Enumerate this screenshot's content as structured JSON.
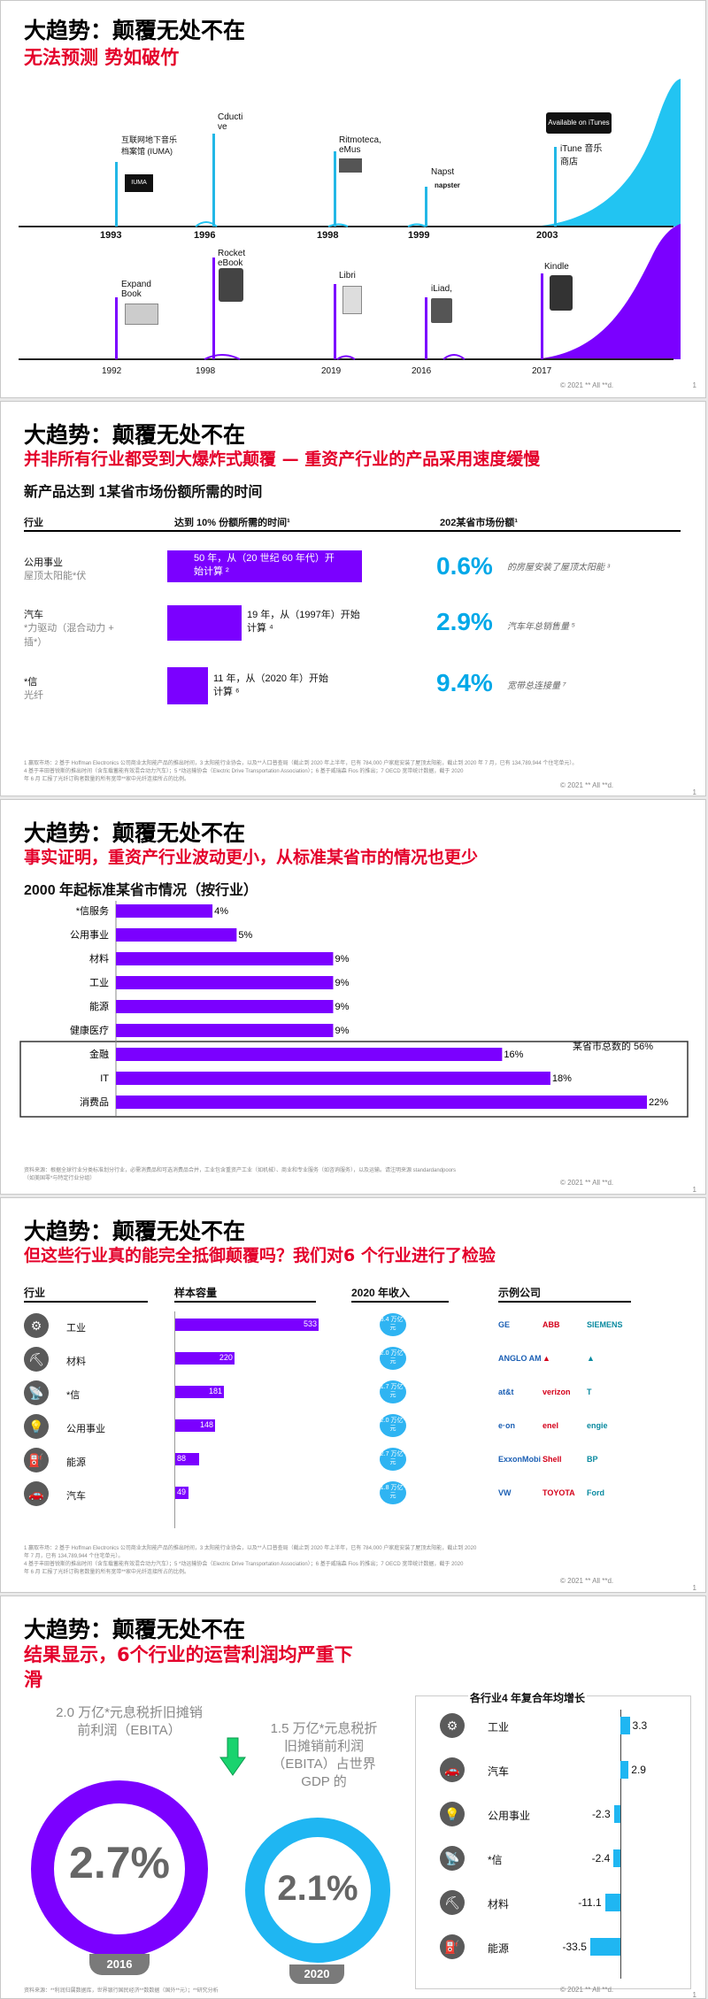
{
  "slide1": {
    "title": "大趋势：颠覆无处不在",
    "subtitle": "无法预测  势如破竹",
    "music_events": [
      {
        "year": "1993",
        "label": "互联网地下音乐档案馆 (IUMA)"
      },
      {
        "year": "1996",
        "label": "Cducti ve"
      },
      {
        "year": "1998",
        "label": "Ritmoteca, eMus"
      },
      {
        "year": "1999",
        "label": "Napst"
      },
      {
        "year": "2003",
        "label": "iTune 音乐商店"
      }
    ],
    "book_events": [
      {
        "year": "1992",
        "label": "Expand Book"
      },
      {
        "year": "1998",
        "label": "Rocket eBook"
      },
      {
        "year": "2019",
        "label": "Libri"
      },
      {
        "year": "2016",
        "label": "iLiad,"
      },
      {
        "year": "2017",
        "label": "Kindle"
      }
    ],
    "itunes_badge": "Available on iTunes",
    "napster_logo": "napster",
    "copyright": "© 2021 ** All **d.",
    "page": "1"
  },
  "slide2": {
    "title": "大趋势：颠覆无处不在",
    "subtitle": "并非所有行业都受到大爆炸式颠覆 — 重资产行业的产品采用速度缓慢",
    "heading": "新产品达到 1某省市场份额所需的时间",
    "col1": "行业",
    "col2": "达到 10% 份额所需的时间¹",
    "col3": "202某省市场份额¹",
    "rows": [
      {
        "industry": "公用事业",
        "product": "屋顶太阳能*伏",
        "bar_text": "50 年，从（20 世纪 60 年代）开始计算 ²",
        "years": 50,
        "share": "0.6%",
        "share_desc": "的房屋安装了屋顶太阳能 ³"
      },
      {
        "industry": "汽车",
        "product": "*力驱动（混合动力 + 插*）",
        "bar_text": "19 年，从（1997年）开始计算 ⁴",
        "years": 19,
        "share": "2.9%",
        "share_desc": "汽车年总销售量 ⁵"
      },
      {
        "industry": "*信",
        "product": "光纤",
        "bar_text": "11 年，从（2020 年）开始计算 ⁶",
        "years": 11,
        "share": "9.4%",
        "share_desc": "宽带总连接量 ⁷"
      }
    ],
    "footnote1": "1 赢取市场：2 基于 Hoffman Electronics 公司商业太阳能产品的推出时间，3 太阳能行业协会，以及**人口普查局（截止到 2020 年上半年，已有 784,000 户家庭安装了屋顶太阳能，截止到 2020 年 7 月，已有 134,789,944 个住宅单元）。",
    "footnote2": "4 基于丰田普锐斯的推出时间（含车载蓄能有效混合动力汽车）；5 *动运输协会（Electric Drive Transportation Association）；6 基于威瑞森 Fios 的推出；7 OECD 宽带统计数据，截于 2020",
    "footnote3": "年 6 月 汇报了光纤订购者数量的所有宽带**家中光纤连接所占的比例。",
    "copyright": "© 2021 ** All **d.",
    "page": "1"
  },
  "slide3": {
    "title": "大趋势：颠覆无处不在",
    "subtitle": "事实证明，重资产行业波动更小，从标准某省市的情况也更少",
    "heading": "2000 年起标准某省市情况（按行业）",
    "annotation": "某省市总数的 56%",
    "footnote1": "资料来源：根据全球行业分类标准划分行业，必需消费品和可选消费品合并，工业包含重资产工业（如机械）、商业和专业服务（如咨询服务），以及运输。请注明来源 standardandpoors",
    "footnote2": "（如美国零*与特定行业分组）",
    "copyright": "© 2021 ** All **d.",
    "page": "1"
  },
  "chart_data": {
    "type": "bar",
    "orientation": "horizontal",
    "categories": [
      "*信服务",
      "公用事业",
      "材料",
      "工业",
      "能源",
      "健康医疗",
      "金融",
      "IT",
      "消费品"
    ],
    "values": [
      4,
      5,
      9,
      9,
      9,
      9,
      16,
      18,
      22
    ],
    "value_labels": [
      "4%",
      "5%",
      "9%",
      "9%",
      "9%",
      "9%",
      "16%",
      "18%",
      "22%"
    ],
    "xlim": [
      0,
      22
    ],
    "color": "#7b00ff"
  },
  "slide4": {
    "title": "大趋势：颠覆无处不在",
    "subtitle": "但这些行业真的能完全抵御颠覆吗？我们对6 个行业进行了检验",
    "col1": "行业",
    "col2": "样本容量",
    "col3": "2020 年收入",
    "col4": "示例公司",
    "rows": [
      {
        "industry": "工业",
        "icon": "industry-icon",
        "sample": 533,
        "revenue": "3.4 万亿*元"
      },
      {
        "industry": "材料",
        "icon": "materials-icon",
        "sample": 220,
        "revenue": "2.0 万亿*元"
      },
      {
        "industry": "*信",
        "icon": "telecom-icon",
        "sample": 181,
        "revenue": "1.7 万亿*元"
      },
      {
        "industry": "公用事业",
        "icon": "utilities-icon",
        "sample": 148,
        "revenue": "2.0 万亿*元"
      },
      {
        "industry": "能源",
        "icon": "energy-icon",
        "sample": 88,
        "revenue": "2.7 万亿*元"
      },
      {
        "industry": "汽车",
        "icon": "auto-icon",
        "sample": 49,
        "revenue": "1.8 万亿*元"
      }
    ],
    "logos": [
      [
        "GE",
        "ABB",
        "SIEMENS"
      ],
      [
        "ANGLO AMERICAN",
        "▲",
        "▲"
      ],
      [
        "at&t",
        "verizon",
        "T"
      ],
      [
        "e·on",
        "enel",
        "engie"
      ],
      [
        "ExxonMobil",
        "Shell",
        "BP"
      ],
      [
        "VW",
        "TOYOTA",
        "Ford"
      ]
    ],
    "footnote1": "1 赢取市场：2 基于 Hoffman Electronics 公司商业太阳能产品的推出时间，3 太阳能行业协会，以及**人口普查局（截止到 2020 年上半年，已有 784,000 户家庭安装了屋顶太阳能，截止到 2020",
    "footnote2": "年 7 月，已有 134,789,944 个住宅单元）。",
    "footnote3": "4 基于丰田普锐斯的推出时间（含车载蓄能有效混合动力汽车）；5 *动运输协会（Electric Drive Transportation Association）；6 基于威瑞森 Fios 的推出；7 OECD 宽带统计数据，截于 2020",
    "footnote4": "年 6 月 汇报了光纤订购者数量的所有宽带**家中光纤连接所占的比例。",
    "copyright": "© 2021 ** All **d.",
    "page": "1"
  },
  "slide5": {
    "title": "大趋势：颠覆无处不在",
    "subtitle_line1": "结果显示，6个行业的运营利润均严重下",
    "subtitle_line2": "滑",
    "left_label": "2.0 万亿*元息税折旧摊销前利润（EBITA）",
    "right_label": "1.5 万亿*元息税折旧摊销前利润（EBITA）占世界 GDP 的",
    "left_value": "2.7%",
    "right_value": "2.1%",
    "left_year": "2016",
    "right_year": "2020",
    "growth_title": "各行业4 年复合年均增长",
    "growth": [
      {
        "industry": "工业",
        "value": 3.3,
        "label": "3.3",
        "icon": "industry-icon"
      },
      {
        "industry": "汽车",
        "value": 2.9,
        "label": "2.9",
        "icon": "auto-icon"
      },
      {
        "industry": "公用事业",
        "value": -2.3,
        "label": "-2.3",
        "icon": "utilities-icon"
      },
      {
        "industry": "*信",
        "value": -2.4,
        "label": "-2.4",
        "icon": "telecom-icon"
      },
      {
        "industry": "材料",
        "value": -11.1,
        "label": "-11.1",
        "icon": "materials-icon"
      },
      {
        "industry": "能源",
        "value": -33.5,
        "label": "-33.5",
        "icon": "energy-icon"
      }
    ],
    "footnote": "资料来源：**利润归属数据库，世界银行国民经济**数数据（国外**元）；**研究分析",
    "copyright": "© 2021 ** All **d.",
    "page": "1"
  }
}
